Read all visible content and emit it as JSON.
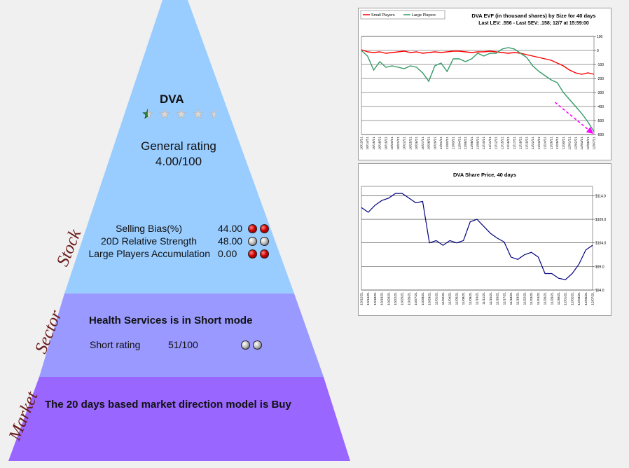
{
  "stock": {
    "ticker": "DVA",
    "stars": 0.5,
    "rating_label": "General rating",
    "rating_value": "4.00/100",
    "tier_label": "Stock",
    "metrics": [
      {
        "label": "Selling Bias(%)",
        "value": "44.00",
        "balls": [
          "red",
          "red"
        ]
      },
      {
        "label": "20D Relative Strength",
        "value": "48.00",
        "balls": [
          "gray",
          "gray"
        ]
      },
      {
        "label": "Large Players Accumulation",
        "value": "0.00",
        "balls": [
          "red",
          "red"
        ]
      }
    ]
  },
  "sector": {
    "tier_label": "Sector",
    "headline": "Health Services is in Short mode",
    "rating_label": "Short rating",
    "rating_value": "51/100",
    "balls": [
      "gray",
      "gray"
    ]
  },
  "market": {
    "tier_label": "Market",
    "headline": "The 20 days based market direction model is Buy"
  },
  "colors": {
    "stock_tier": "#99ccff",
    "sector_tier": "#9999ff",
    "market_tier": "#9966ff"
  },
  "chart_data": [
    {
      "type": "line",
      "title": "DVA EVF (in thousand shares) by Size for 40 days",
      "subtitle": "Last LEV: .556 - Last SEV: .158; 12/7 at 15:59:00",
      "ylim": [
        -600,
        100
      ],
      "y_ticks": [
        "100",
        "0",
        "-100",
        "-200",
        "-300",
        "-400",
        "-500",
        "-600"
      ],
      "x": [
        "10/13/21",
        "10/14/21",
        "10/15/21",
        "10/18/21",
        "10/19/21",
        "10/20/21",
        "10/21/21",
        "10/22/21",
        "10/25/21",
        "10/26/21",
        "10/27/21",
        "10/28/21",
        "10/29/21",
        "11/01/21",
        "11/02/21",
        "11/03/21",
        "11/04/21",
        "11/05/21",
        "11/08/21",
        "11/09/21",
        "11/10/21",
        "11/11/21",
        "11/12/21",
        "11/15/21",
        "11/16/21",
        "11/17/21",
        "11/18/21",
        "11/19/21",
        "11/22/21",
        "11/23/21",
        "11/24/21",
        "11/26/21",
        "11/29/21",
        "11/30/21",
        "12/01/21",
        "12/02/21",
        "12/03/21",
        "12/06/21",
        "12/07/21"
      ],
      "series": [
        {
          "name": "Small Players",
          "color": "#ff0000",
          "values": [
            5,
            -10,
            -15,
            -10,
            -20,
            -15,
            -10,
            -5,
            -15,
            -10,
            -20,
            -15,
            -10,
            -15,
            -10,
            -5,
            -5,
            -10,
            -15,
            -10,
            -10,
            -5,
            -10,
            -15,
            -20,
            -15,
            -20,
            -30,
            -40,
            -50,
            -60,
            -70,
            -90,
            -110,
            -140,
            -160,
            -170,
            -160,
            -170
          ]
        },
        {
          "name": "Large Players",
          "color": "#339966",
          "values": [
            0,
            -40,
            -140,
            -80,
            -120,
            -110,
            -120,
            -130,
            -110,
            -120,
            -160,
            -220,
            -110,
            -90,
            -150,
            -60,
            -60,
            -80,
            -60,
            -20,
            -40,
            -20,
            -20,
            10,
            20,
            10,
            -20,
            -50,
            -110,
            -150,
            -180,
            -210,
            -230,
            -300,
            -350,
            -400,
            -450,
            -510,
            -580
          ]
        }
      ],
      "annotations": [
        "dashed magenta downward arrow on Large Players"
      ]
    },
    {
      "type": "line",
      "title": "DVA Share Price, 40 days",
      "ylim": [
        94,
        116
      ],
      "y_ticks": [
        "$114.0",
        "$109.0",
        "$104.0",
        "$99.0",
        "$94.0"
      ],
      "x": [
        "10/12/21",
        "10/14/21",
        "10/18/21",
        "10/19/21",
        "10/20/21",
        "10/22/21",
        "10/25/21",
        "10/26/21",
        "10/27/21",
        "10/28/21",
        "10/29/21",
        "11/01/21",
        "11/02/21",
        "11/04/21",
        "11/05/21",
        "11/08/21",
        "11/09/21",
        "11/10/21",
        "11/11/21",
        "11/15/21",
        "11/16/21",
        "11/17/21",
        "11/18/21",
        "11/19/21",
        "11/22/21",
        "11/23/21",
        "11/24/21",
        "11/26/21",
        "11/29/21",
        "11/30/21",
        "12/01/21",
        "12/02/21",
        "12/03/21",
        "12/06/21",
        "12/07/21"
      ],
      "series": [
        {
          "name": "",
          "color": "#000080",
          "values": [
            111.5,
            110.5,
            112,
            113,
            113.5,
            114.5,
            114.5,
            113.5,
            112.5,
            112.8,
            104,
            104.5,
            103.5,
            104.5,
            104,
            104.5,
            108.5,
            109,
            107.5,
            106,
            105,
            104.2,
            101,
            100.5,
            101.5,
            102,
            101,
            97.5,
            97.5,
            96.5,
            96.2,
            97.5,
            99.5,
            102.5,
            103.5
          ]
        }
      ]
    }
  ]
}
